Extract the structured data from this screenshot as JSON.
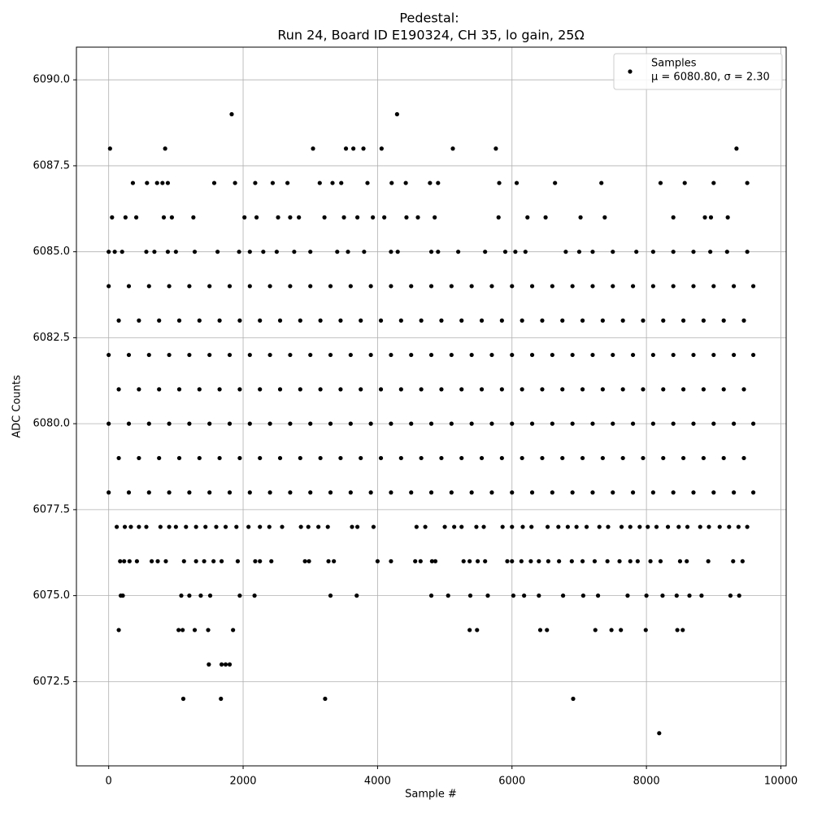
{
  "chart_data": {
    "type": "scatter",
    "title": [
      "Pedestal:",
      "Run 24, Board ID E190324, CH 35, lo gain, 25Ω"
    ],
    "x_label": "Sample #",
    "y_label": "ADC Counts",
    "legend_note": "μ = 6080.80, σ = 2.30",
    "legend_position": "upper right",
    "grid": true,
    "xlim": [
      -480,
      10079
    ],
    "ylim": [
      6070.05,
      6090.95
    ],
    "xticks": [
      0,
      2000,
      4000,
      6000,
      8000,
      10000
    ],
    "yticks": [
      {
        "value": 6072.5,
        "label": "6072.5"
      },
      {
        "value": 6075,
        "label": "6075.0"
      },
      {
        "value": 6077.5,
        "label": "6077.5"
      },
      {
        "value": 6080,
        "label": "6080.0"
      },
      {
        "value": 6082.5,
        "label": "6082.5"
      },
      {
        "value": 6085,
        "label": "6085.0"
      },
      {
        "value": 6087.5,
        "label": "6087.5"
      },
      {
        "value": 6090,
        "label": "6090.0"
      }
    ],
    "series": [
      {
        "name": "Samples",
        "color": "#000000",
        "x": [
          1830,
          4290,
          20,
          840,
          3040,
          3530,
          3640,
          3790,
          4060,
          5120,
          5760,
          9340,
          360,
          570,
          720,
          800,
          880,
          1570,
          1880,
          2180,
          2440,
          2660,
          3140,
          3330,
          3460,
          3850,
          4210,
          4420,
          4780,
          4900,
          5810,
          6070,
          6640,
          7330,
          8210,
          8570,
          9000,
          9500,
          50,
          250,
          410,
          820,
          940,
          1260,
          2020,
          2200,
          2520,
          2700,
          2830,
          3210,
          3500,
          3700,
          3930,
          4100,
          4430,
          4600,
          4850,
          5800,
          6230,
          6500,
          7020,
          7380,
          8400,
          8870,
          8960,
          9210,
          0,
          90,
          200,
          560,
          680,
          880,
          1000,
          1280,
          1620,
          1940,
          2100,
          2300,
          2500,
          2760,
          3000,
          3400,
          3560,
          3800,
          4200,
          4300,
          4800,
          4900,
          5200,
          5600,
          5900,
          6050,
          6200,
          6800,
          7000,
          7200,
          7500,
          7850,
          8100,
          8400,
          8700,
          8950,
          9200,
          9500,
          0,
          300,
          600,
          900,
          1200,
          1500,
          1800,
          2100,
          2400,
          2700,
          3000,
          3300,
          3600,
          3900,
          4200,
          4500,
          4800,
          5100,
          5400,
          5700,
          6000,
          6300,
          6600,
          6900,
          7200,
          7500,
          7800,
          8100,
          8400,
          8700,
          9000,
          9300,
          9590,
          150,
          450,
          750,
          1050,
          1350,
          1650,
          1950,
          2250,
          2550,
          2850,
          3150,
          3450,
          3750,
          4050,
          4350,
          4650,
          4950,
          5250,
          5550,
          5850,
          6150,
          6450,
          6750,
          7050,
          7350,
          7650,
          7950,
          8250,
          8550,
          8850,
          9150,
          9450,
          0,
          300,
          600,
          900,
          1200,
          1500,
          1800,
          2100,
          2400,
          2700,
          3000,
          3300,
          3600,
          3900,
          4200,
          4500,
          4800,
          5100,
          5400,
          5700,
          6000,
          6300,
          6600,
          6900,
          7200,
          7500,
          7800,
          8100,
          8400,
          8700,
          9000,
          9300,
          9590,
          150,
          450,
          750,
          1050,
          1350,
          1650,
          1950,
          2250,
          2550,
          2850,
          3150,
          3450,
          3750,
          4050,
          4350,
          4650,
          4950,
          5250,
          5550,
          5850,
          6150,
          6450,
          6750,
          7050,
          7350,
          7650,
          7950,
          8250,
          8550,
          8850,
          9150,
          9450,
          0,
          300,
          600,
          900,
          1200,
          1500,
          1800,
          2100,
          2400,
          2700,
          3000,
          3300,
          3600,
          3900,
          4200,
          4500,
          4800,
          5100,
          5400,
          5700,
          6000,
          6300,
          6600,
          6900,
          7200,
          7500,
          7800,
          8100,
          8400,
          8700,
          9000,
          9300,
          9590,
          150,
          450,
          750,
          1050,
          1350,
          1650,
          1950,
          2250,
          2550,
          2850,
          3150,
          3450,
          3750,
          4050,
          4350,
          4650,
          4950,
          5250,
          5550,
          5850,
          6150,
          6450,
          6750,
          7050,
          7350,
          7650,
          7950,
          8250,
          8550,
          8850,
          9150,
          9450,
          0,
          300,
          600,
          900,
          1200,
          1500,
          1800,
          2100,
          2400,
          2700,
          3000,
          3300,
          3600,
          3900,
          4200,
          4500,
          4800,
          5100,
          5400,
          5700,
          6000,
          6300,
          6600,
          6900,
          7200,
          7500,
          7800,
          8100,
          8400,
          8700,
          9000,
          9300,
          9590,
          120,
          240,
          330,
          450,
          560,
          770,
          900,
          1000,
          1150,
          1300,
          1440,
          1600,
          1740,
          1900,
          2080,
          2250,
          2390,
          2580,
          2860,
          2970,
          3120,
          3260,
          3620,
          3700,
          3940,
          4580,
          4710,
          5000,
          5140,
          5250,
          5470,
          5580,
          5860,
          6000,
          6160,
          6290,
          6530,
          6690,
          6830,
          6960,
          7110,
          7300,
          7430,
          7630,
          7760,
          7900,
          8020,
          8150,
          8320,
          8480,
          8610,
          8800,
          8930,
          9090,
          9230,
          9370,
          9500,
          170,
          230,
          310,
          420,
          640,
          730,
          850,
          1120,
          1300,
          1420,
          1560,
          1680,
          1920,
          2180,
          2250,
          2420,
          2920,
          2980,
          3270,
          3350,
          4000,
          4200,
          4560,
          4640,
          4810,
          4860,
          5280,
          5370,
          5490,
          5600,
          5930,
          6000,
          6140,
          6280,
          6400,
          6540,
          6700,
          6890,
          7050,
          7230,
          7420,
          7600,
          7760,
          7870,
          8060,
          8210,
          8500,
          8600,
          8920,
          9290,
          9430,
          180,
          210,
          1080,
          1200,
          1370,
          1510,
          1950,
          2170,
          3300,
          3690,
          4800,
          5050,
          5380,
          5640,
          6020,
          6180,
          6400,
          6760,
          7060,
          7280,
          7720,
          8000,
          8240,
          8450,
          8640,
          8820,
          9250,
          9380,
          150,
          1040,
          1100,
          1280,
          1480,
          1850,
          5370,
          5480,
          6420,
          6520,
          7240,
          7480,
          7620,
          7990,
          8460,
          8540,
          1490,
          1680,
          1740,
          1800,
          1110,
          1670,
          3220,
          6910,
          8190
        ],
        "values": [
          6089,
          6089,
          6088,
          6088,
          6088,
          6088,
          6088,
          6088,
          6088,
          6088,
          6088,
          6088,
          6087,
          6087,
          6087,
          6087,
          6087,
          6087,
          6087,
          6087,
          6087,
          6087,
          6087,
          6087,
          6087,
          6087,
          6087,
          6087,
          6087,
          6087,
          6087,
          6087,
          6087,
          6087,
          6087,
          6087,
          6087,
          6087,
          6086,
          6086,
          6086,
          6086,
          6086,
          6086,
          6086,
          6086,
          6086,
          6086,
          6086,
          6086,
          6086,
          6086,
          6086,
          6086,
          6086,
          6086,
          6086,
          6086,
          6086,
          6086,
          6086,
          6086,
          6086,
          6086,
          6086,
          6086,
          6085,
          6085,
          6085,
          6085,
          6085,
          6085,
          6085,
          6085,
          6085,
          6085,
          6085,
          6085,
          6085,
          6085,
          6085,
          6085,
          6085,
          6085,
          6085,
          6085,
          6085,
          6085,
          6085,
          6085,
          6085,
          6085,
          6085,
          6085,
          6085,
          6085,
          6085,
          6085,
          6085,
          6085,
          6085,
          6085,
          6085,
          6085,
          6084,
          6084,
          6084,
          6084,
          6084,
          6084,
          6084,
          6084,
          6084,
          6084,
          6084,
          6084,
          6084,
          6084,
          6084,
          6084,
          6084,
          6084,
          6084,
          6084,
          6084,
          6084,
          6084,
          6084,
          6084,
          6084,
          6084,
          6084,
          6084,
          6084,
          6084,
          6084,
          6084,
          6083,
          6083,
          6083,
          6083,
          6083,
          6083,
          6083,
          6083,
          6083,
          6083,
          6083,
          6083,
          6083,
          6083,
          6083,
          6083,
          6083,
          6083,
          6083,
          6083,
          6083,
          6083,
          6083,
          6083,
          6083,
          6083,
          6083,
          6083,
          6083,
          6083,
          6083,
          6083,
          6082,
          6082,
          6082,
          6082,
          6082,
          6082,
          6082,
          6082,
          6082,
          6082,
          6082,
          6082,
          6082,
          6082,
          6082,
          6082,
          6082,
          6082,
          6082,
          6082,
          6082,
          6082,
          6082,
          6082,
          6082,
          6082,
          6082,
          6082,
          6082,
          6082,
          6082,
          6082,
          6082,
          6081,
          6081,
          6081,
          6081,
          6081,
          6081,
          6081,
          6081,
          6081,
          6081,
          6081,
          6081,
          6081,
          6081,
          6081,
          6081,
          6081,
          6081,
          6081,
          6081,
          6081,
          6081,
          6081,
          6081,
          6081,
          6081,
          6081,
          6081,
          6081,
          6081,
          6081,
          6081,
          6080,
          6080,
          6080,
          6080,
          6080,
          6080,
          6080,
          6080,
          6080,
          6080,
          6080,
          6080,
          6080,
          6080,
          6080,
          6080,
          6080,
          6080,
          6080,
          6080,
          6080,
          6080,
          6080,
          6080,
          6080,
          6080,
          6080,
          6080,
          6080,
          6080,
          6080,
          6080,
          6080,
          6079,
          6079,
          6079,
          6079,
          6079,
          6079,
          6079,
          6079,
          6079,
          6079,
          6079,
          6079,
          6079,
          6079,
          6079,
          6079,
          6079,
          6079,
          6079,
          6079,
          6079,
          6079,
          6079,
          6079,
          6079,
          6079,
          6079,
          6079,
          6079,
          6079,
          6079,
          6079,
          6078,
          6078,
          6078,
          6078,
          6078,
          6078,
          6078,
          6078,
          6078,
          6078,
          6078,
          6078,
          6078,
          6078,
          6078,
          6078,
          6078,
          6078,
          6078,
          6078,
          6078,
          6078,
          6078,
          6078,
          6078,
          6078,
          6078,
          6078,
          6078,
          6078,
          6078,
          6078,
          6078,
          6077,
          6077,
          6077,
          6077,
          6077,
          6077,
          6077,
          6077,
          6077,
          6077,
          6077,
          6077,
          6077,
          6077,
          6077,
          6077,
          6077,
          6077,
          6077,
          6077,
          6077,
          6077,
          6077,
          6077,
          6077,
          6077,
          6077,
          6077,
          6077,
          6077,
          6077,
          6077,
          6077,
          6077,
          6077,
          6077,
          6077,
          6077,
          6077,
          6077,
          6077,
          6077,
          6077,
          6077,
          6077,
          6077,
          6077,
          6077,
          6077,
          6077,
          6077,
          6077,
          6077,
          6077,
          6077,
          6077,
          6077,
          6076,
          6076,
          6076,
          6076,
          6076,
          6076,
          6076,
          6076,
          6076,
          6076,
          6076,
          6076,
          6076,
          6076,
          6076,
          6076,
          6076,
          6076,
          6076,
          6076,
          6076,
          6076,
          6076,
          6076,
          6076,
          6076,
          6076,
          6076,
          6076,
          6076,
          6076,
          6076,
          6076,
          6076,
          6076,
          6076,
          6076,
          6076,
          6076,
          6076,
          6076,
          6076,
          6076,
          6076,
          6076,
          6076,
          6076,
          6076,
          6076,
          6076,
          6076,
          6075,
          6075,
          6075,
          6075,
          6075,
          6075,
          6075,
          6075,
          6075,
          6075,
          6075,
          6075,
          6075,
          6075,
          6075,
          6075,
          6075,
          6075,
          6075,
          6075,
          6075,
          6075,
          6075,
          6075,
          6075,
          6075,
          6075,
          6075,
          6074,
          6074,
          6074,
          6074,
          6074,
          6074,
          6074,
          6074,
          6074,
          6074,
          6074,
          6074,
          6074,
          6074,
          6074,
          6074,
          6073,
          6073,
          6073,
          6073,
          6072,
          6072,
          6072,
          6072,
          6071
        ]
      }
    ]
  }
}
